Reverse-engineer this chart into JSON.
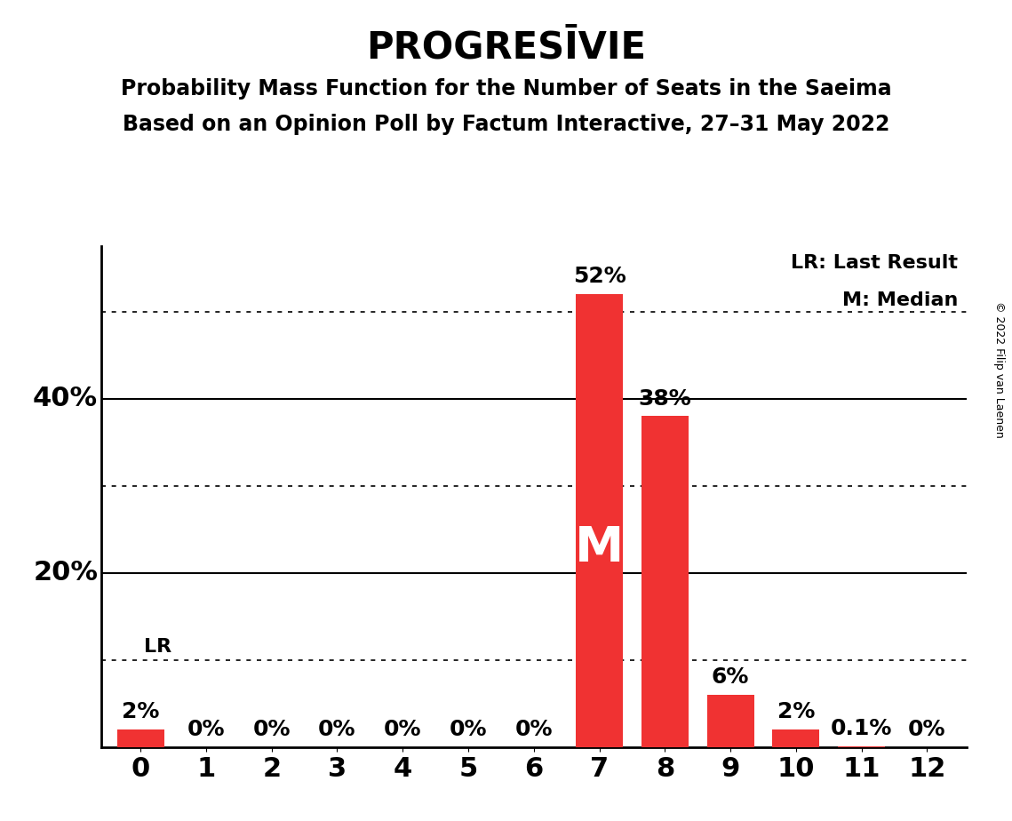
{
  "title": "PROGRESĪVIE",
  "subtitle1": "Probability Mass Function for the Number of Seats in the Saeima",
  "subtitle2": "Based on an Opinion Poll by Factum Interactive, 27–31 May 2022",
  "copyright": "© 2022 Filip van Laenen",
  "categories": [
    0,
    1,
    2,
    3,
    4,
    5,
    6,
    7,
    8,
    9,
    10,
    11,
    12
  ],
  "values": [
    0.02,
    0.0,
    0.0,
    0.0,
    0.0,
    0.0,
    0.0,
    0.52,
    0.38,
    0.06,
    0.02,
    0.001,
    0.0
  ],
  "bar_labels": [
    "2%",
    "0%",
    "0%",
    "0%",
    "0%",
    "0%",
    "0%",
    "52%",
    "38%",
    "6%",
    "2%",
    "0.1%",
    "0%"
  ],
  "bar_color": "#f03232",
  "background_color": "#ffffff",
  "lr_value": 0.1,
  "lr_label": "LR",
  "median_bar": 7,
  "median_label": "M",
  "legend_lr": "LR: Last Result",
  "legend_m": "M: Median",
  "solid_yticks": [
    0.2,
    0.4
  ],
  "dotted_yticks": [
    0.1,
    0.3,
    0.5
  ],
  "ylim": [
    0,
    0.575
  ],
  "title_fontsize": 30,
  "subtitle_fontsize": 17,
  "ytick_label_fontsize": 22,
  "xtick_fontsize": 22,
  "bar_label_fontsize": 18,
  "median_fontsize": 40,
  "legend_fontsize": 16,
  "lr_label_fontsize": 16,
  "copyright_fontsize": 9
}
